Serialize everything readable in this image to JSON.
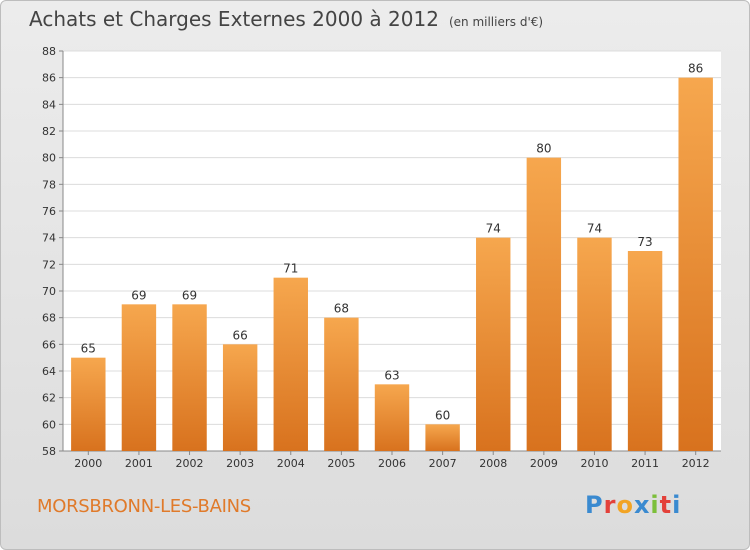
{
  "title": "Achats et Charges Externes 2000 à 2012",
  "unit": "(en milliers d'€)",
  "commune": "MORSBRONN-LES-BAINS",
  "brand": {
    "letters": [
      "P",
      "r",
      "o",
      "x",
      "i",
      "t",
      "i"
    ],
    "colors": [
      "#3a8ad0",
      "#e3413a",
      "#f2a424",
      "#3a8ad0",
      "#7cbf3a",
      "#e3413a",
      "#3a8ad0"
    ]
  },
  "colors": {
    "bar_light": "#f6a74e",
    "bar_dark": "#d8721e",
    "title": "#444444",
    "commune": "#e07a2a"
  },
  "chart_data": {
    "type": "bar",
    "categories": [
      "2000",
      "2001",
      "2002",
      "2003",
      "2004",
      "2005",
      "2006",
      "2007",
      "2008",
      "2009",
      "2010",
      "2011",
      "2012"
    ],
    "values": [
      65,
      69,
      69,
      66,
      71,
      68,
      63,
      60,
      74,
      80,
      74,
      73,
      86
    ],
    "ylim": [
      58,
      88
    ],
    "yticks": [
      58,
      60,
      62,
      64,
      66,
      68,
      70,
      72,
      74,
      76,
      78,
      80,
      82,
      84,
      86,
      88
    ],
    "grid": true,
    "data_labels": true
  }
}
